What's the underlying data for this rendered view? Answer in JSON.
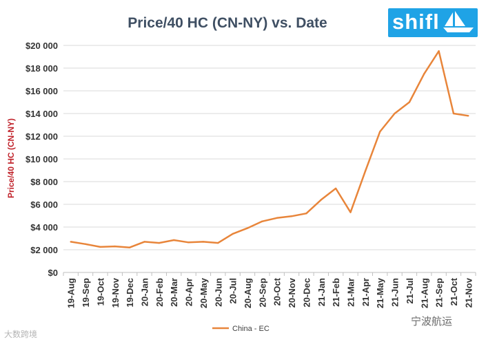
{
  "chart_data": {
    "type": "line",
    "title": "Price/40 HC (CN-NY) vs. Date",
    "xlabel": "",
    "ylabel": "Price/40 HC (CN-NY)",
    "ylim": [
      0,
      20000
    ],
    "yticks": [
      0,
      2000,
      4000,
      6000,
      8000,
      10000,
      12000,
      14000,
      16000,
      18000,
      20000
    ],
    "ytick_labels": [
      "$0",
      "$2 000",
      "$4 000",
      "$6 000",
      "$8 000",
      "$10 000",
      "$12 000",
      "$14 000",
      "$16 000",
      "$18 000",
      "$20 000"
    ],
    "grid": true,
    "legend_position": "bottom-center",
    "categories": [
      "19-Aug",
      "19-Sep",
      "19-Oct",
      "19-Nov",
      "19-Dec",
      "20-Jan",
      "20-Feb",
      "20-Mar",
      "20-Apr",
      "20-May",
      "20-Jun",
      "20-Jul",
      "20-Aug",
      "20-Sep",
      "20-Oct",
      "20-Nov",
      "20-Dec",
      "21-Jan",
      "21-Feb",
      "21-Mar",
      "21-Apr",
      "21-May",
      "21-Jun",
      "21-Jul",
      "21-Aug",
      "21-Sep",
      "21-Oct",
      "21-Nov"
    ],
    "series": [
      {
        "name": "China - EC",
        "color": "#e8853a",
        "values": [
          2700,
          2500,
          2250,
          2300,
          2200,
          2700,
          2600,
          2850,
          2650,
          2700,
          2600,
          3400,
          3900,
          4500,
          4800,
          4950,
          5200,
          6400,
          7400,
          5300,
          8900,
          12400,
          14000,
          15000,
          17500,
          19500,
          14000,
          13800
        ]
      }
    ]
  },
  "branding": {
    "logo_text": "shifl",
    "watermark_left": "大数跨境",
    "watermark_right": "宁波航运"
  }
}
